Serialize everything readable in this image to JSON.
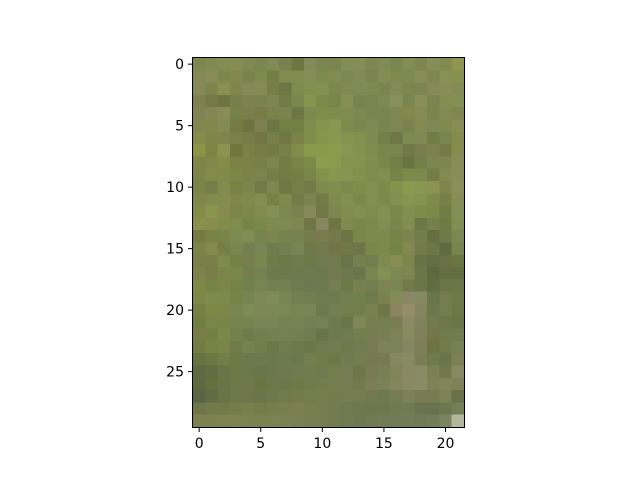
{
  "chart_data": {
    "type": "heatmap",
    "title": "",
    "xlabel": "",
    "ylabel": "",
    "grid": false,
    "y_inverted": true,
    "xlim": [
      -0.5,
      21.5
    ],
    "ylim": [
      29.5,
      -0.5
    ],
    "x_ticks": [
      0,
      5,
      10,
      15,
      20
    ],
    "y_ticks": [
      0,
      5,
      10,
      15,
      20,
      25
    ],
    "x_tick_labels": [
      "0",
      "5",
      "10",
      "15",
      "20"
    ],
    "y_tick_labels": [
      "0",
      "5",
      "10",
      "15",
      "20",
      "25"
    ],
    "columns": 22,
    "rows": 30,
    "pixel_colors": [
      [
        "#7d864d",
        "#7e8a50",
        "#828c53",
        "#858c55",
        "#7f8a50",
        "#7b8650",
        "#808a55",
        "#7a8150",
        "#6e7742",
        "#838a57",
        "#7b8652",
        "#7b8550",
        "#838d56",
        "#858c55",
        "#7d8851",
        "#828b55",
        "#7b8750",
        "#828c54",
        "#7e8750",
        "#858e58",
        "#818b50",
        "#8e964f"
      ],
      [
        "#848a53",
        "#8a8c58",
        "#7e874e",
        "#82884f",
        "#7b834c",
        "#7f8a4f",
        "#767e48",
        "#818b50",
        "#828b51",
        "#848d56",
        "#7e8b4f",
        "#818b52",
        "#7e8752",
        "#828b55",
        "#7c8550",
        "#858d57",
        "#808a50",
        "#7e8a51",
        "#868e55",
        "#7f8852",
        "#899155",
        "#86904f"
      ],
      [
        "#86885a",
        "#7d854e",
        "#88904f",
        "#7e884e",
        "#838a55",
        "#848a53",
        "#767e47",
        "#6f7646",
        "#7e8a4e",
        "#80904e",
        "#84904f",
        "#7c884e",
        "#808a52",
        "#7f8b54",
        "#7f8a50",
        "#7a8550",
        "#828b54",
        "#7c854d",
        "#7e8555",
        "#858a56",
        "#898c57",
        "#848b52"
      ],
      [
        "#7e8050",
        "#737b46",
        "#6d7442",
        "#77804a",
        "#7c8250",
        "#7b834c",
        "#7e864f",
        "#737c45",
        "#7b874c",
        "#879450",
        "#7c8a4c",
        "#788549",
        "#858e55",
        "#788450",
        "#798451",
        "#7d8952",
        "#87905a",
        "#7b864e",
        "#878e58",
        "#7a8550",
        "#848c52",
        "#829052"
      ],
      [
        "#808455",
        "#858654",
        "#898c56",
        "#778248",
        "#7a7f4d",
        "#767b48",
        "#7a824c",
        "#7a8450",
        "#6e7646",
        "#7d8a4f",
        "#7f8d4b",
        "#7f8c4d",
        "#808c4f",
        "#7e8951",
        "#7b8550",
        "#7a8651",
        "#7e8951",
        "#82894f",
        "#858b55",
        "#7b854c",
        "#838954",
        "#7f8750"
      ],
      [
        "#81864f",
        "#7f874b",
        "#848a55",
        "#717b43",
        "#6d7343",
        "#7d804f",
        "#6f7646",
        "#718043",
        "#738045",
        "#808c4b",
        "#86934d",
        "#8a9751",
        "#7f8b4e",
        "#7c884f",
        "#7f8a52",
        "#79854f",
        "#7e8652",
        "#7a834e",
        "#83894f",
        "#808855",
        "#7f8a4f",
        "#868e52"
      ],
      [
        "#858c48",
        "#7e8548",
        "#7e864d",
        "#7a8148",
        "#777d48",
        "#727645",
        "#767f4a",
        "#707644",
        "#7a8347",
        "#7e8d4a",
        "#86954c",
        "#8a984f",
        "#869350",
        "#83904e",
        "#7f8a51",
        "#748048",
        "#6f7647",
        "#7e8a50",
        "#808954",
        "#747c46",
        "#7a8450",
        "#838b4f"
      ],
      [
        "#8c9546",
        "#7e8544",
        "#8a9350",
        "#6f773f",
        "#7b8147",
        "#757c46",
        "#727b44",
        "#797f48",
        "#7f8d49",
        "#8b994c",
        "#8b994c",
        "#8c9a4b",
        "#879652",
        "#849250",
        "#808c4e",
        "#7a864b",
        "#7b854f",
        "#71794a",
        "#787e4d",
        "#7c824e",
        "#747b46",
        "#858c4e"
      ],
      [
        "#7e8546",
        "#80884b",
        "#838b46",
        "#7b8246",
        "#7b8248",
        "#76814a",
        "#7d864e",
        "#727d44",
        "#7b8448",
        "#7d8a49",
        "#8f9c50",
        "#8c9a4e",
        "#86944e",
        "#859250",
        "#7f8d4d",
        "#7b884a",
        "#747e49",
        "#6a7240",
        "#747f49",
        "#7b8550",
        "#7c864d",
        "#858c55"
      ],
      [
        "#7c8448",
        "#838b4b",
        "#808a4a",
        "#7d8748",
        "#7b8448",
        "#7c844d",
        "#747f47",
        "#737b44",
        "#737e45",
        "#7a8649",
        "#84904c",
        "#88964e",
        "#889550",
        "#83914d",
        "#7f8c4e",
        "#828e4e",
        "#778348",
        "#7d8a4a",
        "#7d894c",
        "#747d48",
        "#828a50",
        "#878e58"
      ],
      [
        "#7a8446",
        "#757d48",
        "#818b4f",
        "#788247",
        "#7c854b",
        "#727a45",
        "#7f8650",
        "#6f7844",
        "#747e46",
        "#737b48",
        "#7e8a4e",
        "#808e4b",
        "#7d894c",
        "#7f8d4b",
        "#838f4f",
        "#7d8b4a",
        "#84924c",
        "#8a9a4f",
        "#889650",
        "#8a9450",
        "#7e864e",
        "#8a8e58"
      ],
      [
        "#7e8649",
        "#808c4e",
        "#838c4d",
        "#7e8849",
        "#7e8a4a",
        "#838d52",
        "#778147",
        "#80894e",
        "#737c46",
        "#7a8450",
        "#737a48",
        "#7f8a4e",
        "#838f50",
        "#7d894c",
        "#848e51",
        "#7d8a4b",
        "#849050",
        "#879550",
        "#869250",
        "#7e8b4c",
        "#788049",
        "#868e55"
      ],
      [
        "#838b48",
        "#8b944c",
        "#878b4d",
        "#7c844b",
        "#7e884b",
        "#808b4c",
        "#858f55",
        "#7d884e",
        "#7b824b",
        "#858a5a",
        "#737944",
        "#7d8550",
        "#808b4d",
        "#858f50",
        "#7f8c4c",
        "#848f52",
        "#7b884a",
        "#838f4e",
        "#7f8b4b",
        "#7d8849",
        "#727d45",
        "#838e52"
      ],
      [
        "#8a8f4b",
        "#878e4d",
        "#818c4b",
        "#7e8c4d",
        "#788548",
        "#7b884c",
        "#7f8a50",
        "#818a54",
        "#7e8750",
        "#707646",
        "#89875d",
        "#6f7643",
        "#7e8a50",
        "#7b874d",
        "#7c884e",
        "#838e52",
        "#7b8550",
        "#828d4f",
        "#6c7945",
        "#75804c",
        "#6f7a45",
        "#838d51"
      ],
      [
        "#757c41",
        "#798444",
        "#788448",
        "#7e8b50",
        "#808c52",
        "#76844e",
        "#7b8550",
        "#76834e",
        "#77834f",
        "#747c49",
        "#7a7c4f",
        "#757a4c",
        "#6e7544",
        "#7b864d",
        "#7d8a4d",
        "#7d8a4d",
        "#788348",
        "#7b844e",
        "#737c4c",
        "#666e42",
        "#6e7a47",
        "#7c8751"
      ],
      [
        "#7b8347",
        "#828a4d",
        "#767f47",
        "#7a8550",
        "#758050",
        "#788453",
        "#6f7d4c",
        "#738052",
        "#778453",
        "#6e7a4c",
        "#727a4d",
        "#72744a",
        "#70784a",
        "#6e7648",
        "#7c874e",
        "#7c8a4a",
        "#73844a",
        "#82884e",
        "#737b4e",
        "#6f7645",
        "#626a3f",
        "#7a8450"
      ],
      [
        "#7a7f45",
        "#797f49",
        "#808a4d",
        "#768148",
        "#777f4f",
        "#78864f",
        "#6e7c4c",
        "#6c7a48",
        "#6e7b4d",
        "#6c7a4a",
        "#6f7b4e",
        "#71794d",
        "#6b7448",
        "#757f4f",
        "#727e4d",
        "#7e8a50",
        "#868c52",
        "#7d864c",
        "#687343",
        "#646e43",
        "#6a6f45",
        "#6a7542"
      ],
      [
        "#7c8249",
        "#787c49",
        "#7c8548",
        "#7b864b",
        "#737f4c",
        "#75814f",
        "#6f7a4c",
        "#6c7a4b",
        "#6e7a4c",
        "#6e7a4e",
        "#6d784c",
        "#727b4e",
        "#6f774e",
        "#6b744a",
        "#7b854f",
        "#848f53",
        "#7e8855",
        "#7e8750",
        "#6c7548",
        "#5e6a3e",
        "#666e3f",
        "#656e40"
      ],
      [
        "#7f8846",
        "#778449",
        "#7b8648",
        "#768346",
        "#738150",
        "#778453",
        "#748052",
        "#748054",
        "#6e7b4f",
        "#6c7850",
        "#6c7a4e",
        "#747e50",
        "#6b7a49",
        "#788050",
        "#757e50",
        "#7d8451",
        "#798752",
        "#727a4c",
        "#6a7447",
        "#626c41",
        "#6a7546",
        "#6c7649"
      ],
      [
        "#7d8746",
        "#7f8a4c",
        "#7d8a4c",
        "#778448",
        "#788553",
        "#7d8956",
        "#7f8b5a",
        "#788555",
        "#728151",
        "#717f50",
        "#6e7b50",
        "#6e7b4e",
        "#737e51",
        "#718050",
        "#707a4a",
        "#7a8252",
        "#858a5b",
        "#8a8864",
        "#858860",
        "#687649",
        "#737d4e",
        "#6e7a48"
      ],
      [
        "#777f44",
        "#7d8846",
        "#7b8648",
        "#78864f",
        "#7e8b57",
        "#7b8856",
        "#7b8756",
        "#7a8856",
        "#778555",
        "#788554",
        "#6d7a4e",
        "#737f52",
        "#727e4c",
        "#727f4c",
        "#787f50",
        "#6d7747",
        "#8a8560",
        "#948d6a",
        "#848560",
        "#6c774c",
        "#717e4e",
        "#6d7748"
      ],
      [
        "#727d40",
        "#7a8549",
        "#788547",
        "#76844d",
        "#76844f",
        "#788655",
        "#7a8557",
        "#738153",
        "#768455",
        "#738053",
        "#738153",
        "#6d7a4e",
        "#6b7648",
        "#7f8856",
        "#777f52",
        "#757e50",
        "#7a7d52",
        "#8b8a64",
        "#7f825b",
        "#737a4d",
        "#6e7749",
        "#6b7447"
      ],
      [
        "#767e46",
        "#748046",
        "#7a8848",
        "#73814b",
        "#6e7c4c",
        "#708050",
        "#738051",
        "#738153",
        "#728052",
        "#6f7e4e",
        "#697449",
        "#6e7a4d",
        "#6f7a4f",
        "#737e4f",
        "#777c52",
        "#787f54",
        "#7b8256",
        "#868a5e",
        "#7f805b",
        "#737649",
        "#6f7a4e",
        "#727c4f"
      ],
      [
        "#737c45",
        "#788346",
        "#7c8547",
        "#6f7b48",
        "#758253",
        "#6f7e4d",
        "#6b794a",
        "#6f7e50",
        "#6c7b4c",
        "#697749",
        "#6f7a4e",
        "#727c4e",
        "#6e7a4a",
        "#737c50",
        "#767c52",
        "#7c8256",
        "#7c8257",
        "#838760",
        "#7c8059",
        "#6c7445",
        "#727b4c",
        "#787f53"
      ],
      [
        "#69733f",
        "#6c7742",
        "#727d49",
        "#6c7946",
        "#6b7a4c",
        "#697a4d",
        "#6a794d",
        "#6c7b4d",
        "#6b784b",
        "#737d4e",
        "#707c4a",
        "#6e7949",
        "#727b50",
        "#737e50",
        "#757a4f",
        "#767b52",
        "#848760",
        "#878a63",
        "#7b7e55",
        "#707948",
        "#6c7549",
        "#7d8054"
      ],
      [
        "#5f6a3f",
        "#636d42",
        "#6b7446",
        "#6c7946",
        "#6a784a",
        "#687649",
        "#6c784c",
        "#6d7a4d",
        "#6f7a4e",
        "#727b4d",
        "#717a4e",
        "#747d4c",
        "#757c50",
        "#6e764a",
        "#777c52",
        "#7a8055",
        "#7f8459",
        "#898a64",
        "#898b64",
        "#7c8155",
        "#71784b",
        "#868a60"
      ],
      [
        "#5f683e",
        "#66703f",
        "#6a7346",
        "#6e7748",
        "#6e7849",
        "#6c7446",
        "#6c774a",
        "#6e774b",
        "#6f7a4b",
        "#727a4e",
        "#727c4d",
        "#737d4e",
        "#767c51",
        "#737b4d",
        "#7c7f54",
        "#7b8156",
        "#83865a",
        "#888a62",
        "#898b64",
        "#7d8358",
        "#80855a",
        "#7f8256"
      ],
      [
        "#5a6343",
        "#626b43",
        "#6a7246",
        "#6e7749",
        "#6f7649",
        "#6c7449",
        "#6f784b",
        "#707a4c",
        "#737b4d",
        "#747d4e",
        "#767d4f",
        "#747b4e",
        "#757c50",
        "#757c50",
        "#737a4f",
        "#70794d",
        "#767d52",
        "#7e8258",
        "#787c52",
        "#767b50",
        "#7d8257",
        "#6b7148"
      ],
      [
        "#6e7548",
        "#737a4a",
        "#727a48",
        "#757d4c",
        "#777f4c",
        "#757c4b",
        "#777e4d",
        "#7a7f4e",
        "#7b8052",
        "#777f51",
        "#777d51",
        "#747b4f",
        "#717a4f",
        "#6f784e",
        "#6e784e",
        "#6e784f",
        "#707b51",
        "#727a53",
        "#6a7350",
        "#687150",
        "#6f7751",
        "#747c58"
      ],
      [
        "#7c8150",
        "#7b8250",
        "#7c8350",
        "#7d8451",
        "#7b8352",
        "#7b8251",
        "#7c8252",
        "#7a8152",
        "#788052",
        "#777f50",
        "#767d51",
        "#747b4f",
        "#717950",
        "#6f7750",
        "#707a52",
        "#727b55",
        "#737b56",
        "#747c57",
        "#727a55",
        "#737b58",
        "#7b8360",
        "#b3b79c"
      ]
    ]
  }
}
